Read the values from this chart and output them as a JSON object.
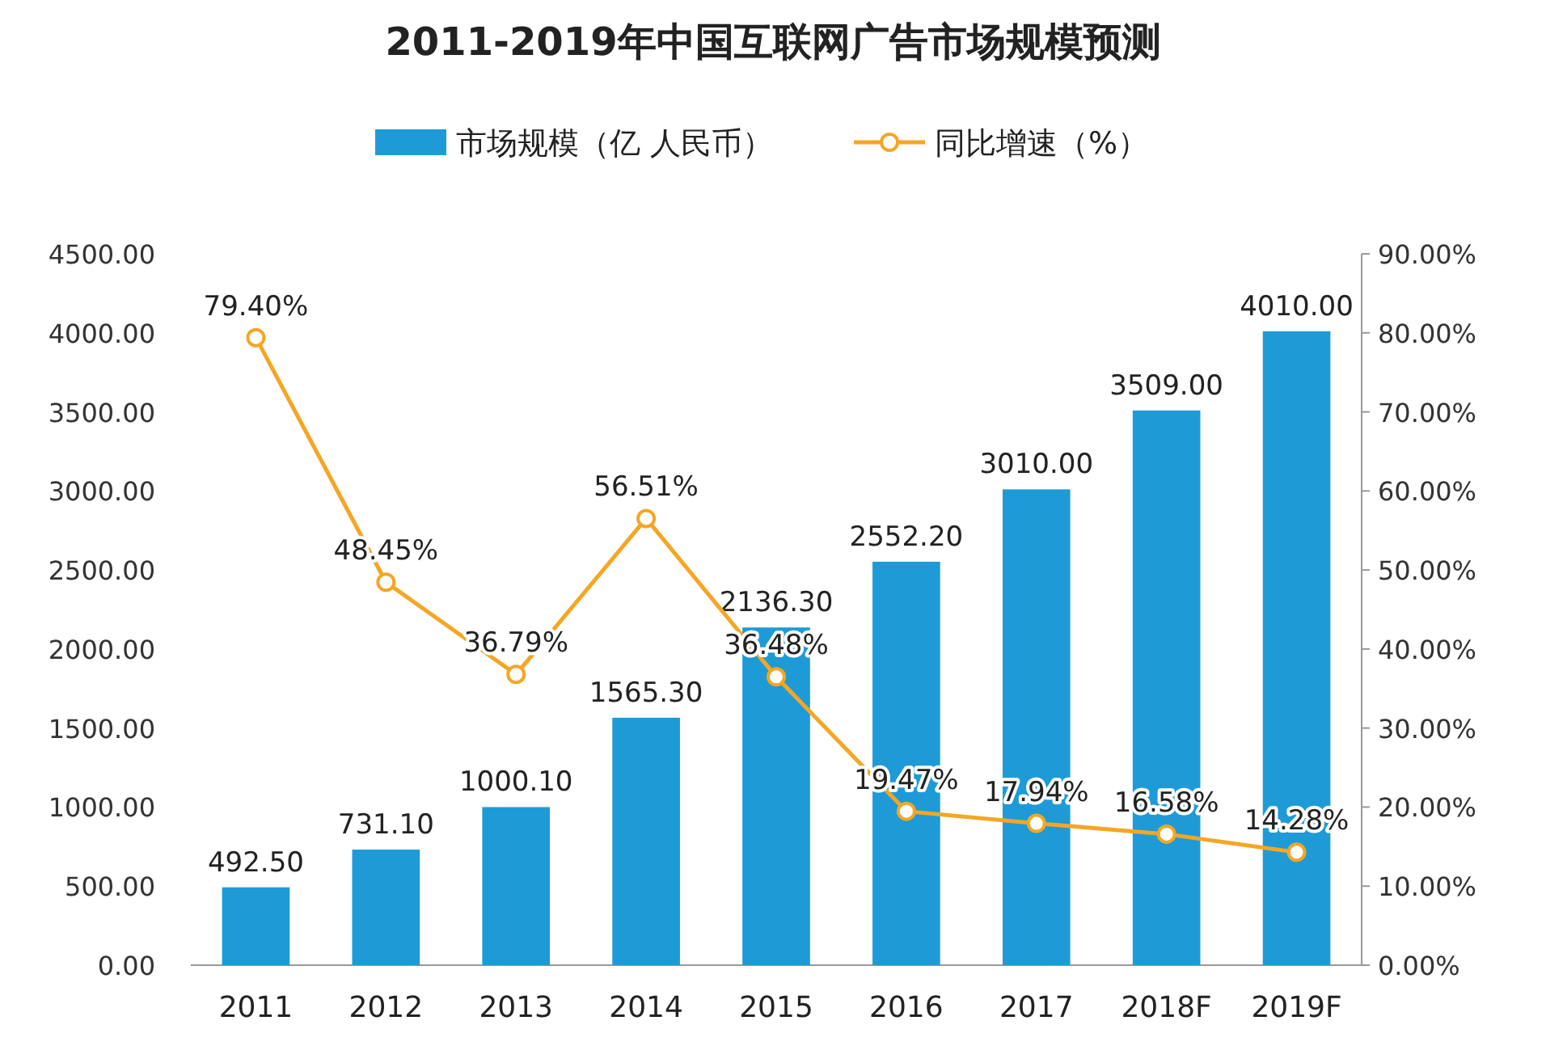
{
  "chart_data": {
    "type": "bar",
    "title": "2011-2019年中国互联网广告市场规模预测",
    "categories": [
      "2011",
      "2012",
      "2013",
      "2014",
      "2015",
      "2016",
      "2017",
      "2018F",
      "2019F"
    ],
    "series": [
      {
        "name": "市场规模（亿 人民币）",
        "color": "#1e9bd7",
        "values": [
          492.5,
          731.1,
          1000.1,
          1565.3,
          2136.3,
          2552.2,
          3010.0,
          3509.0,
          4010.0
        ],
        "value_labels": [
          "492.50",
          "731.10",
          "1000.10",
          "1565.30",
          "2136.30",
          "2552.20",
          "3010.00",
          "3509.00",
          "4010.00"
        ]
      },
      {
        "name": "同比增速（%）",
        "type": "line",
        "axis": "y2",
        "color": "#f5a623",
        "marker": "circle",
        "values": [
          79.4,
          48.45,
          36.79,
          56.51,
          36.48,
          19.47,
          17.94,
          16.58,
          14.28
        ],
        "value_labels": [
          "79.40%",
          "48.45%",
          "36.79%",
          "56.51%",
          "36.48%",
          "19.47%",
          "17.94%",
          "16.58%",
          "14.28%"
        ]
      }
    ],
    "ylim": [
      0,
      4500
    ],
    "yticks": [
      {
        "value": 0,
        "label": "0.00"
      },
      {
        "value": 500,
        "label": "500.00"
      },
      {
        "value": 1000,
        "label": "1000.00"
      },
      {
        "value": 1500,
        "label": "1500.00"
      },
      {
        "value": 2000,
        "label": "2000.00"
      },
      {
        "value": 2500,
        "label": "2500.00"
      },
      {
        "value": 3000,
        "label": "3000.00"
      },
      {
        "value": 3500,
        "label": "3500.00"
      },
      {
        "value": 4000,
        "label": "4000.00"
      },
      {
        "value": 4500,
        "label": "4500.00"
      }
    ],
    "y2lim": [
      0,
      90
    ],
    "y2ticks": [
      {
        "value": 0,
        "label": "0.00%"
      },
      {
        "value": 10,
        "label": "10.00%"
      },
      {
        "value": 20,
        "label": "20.00%"
      },
      {
        "value": 30,
        "label": "30.00%"
      },
      {
        "value": 40,
        "label": "40.00%"
      },
      {
        "value": 50,
        "label": "50.00%"
      },
      {
        "value": 60,
        "label": "60.00%"
      },
      {
        "value": 70,
        "label": "70.00%"
      },
      {
        "value": 80,
        "label": "80.00%"
      },
      {
        "value": 90,
        "label": "90.00%"
      }
    ],
    "legend": "top",
    "grid": false
  }
}
